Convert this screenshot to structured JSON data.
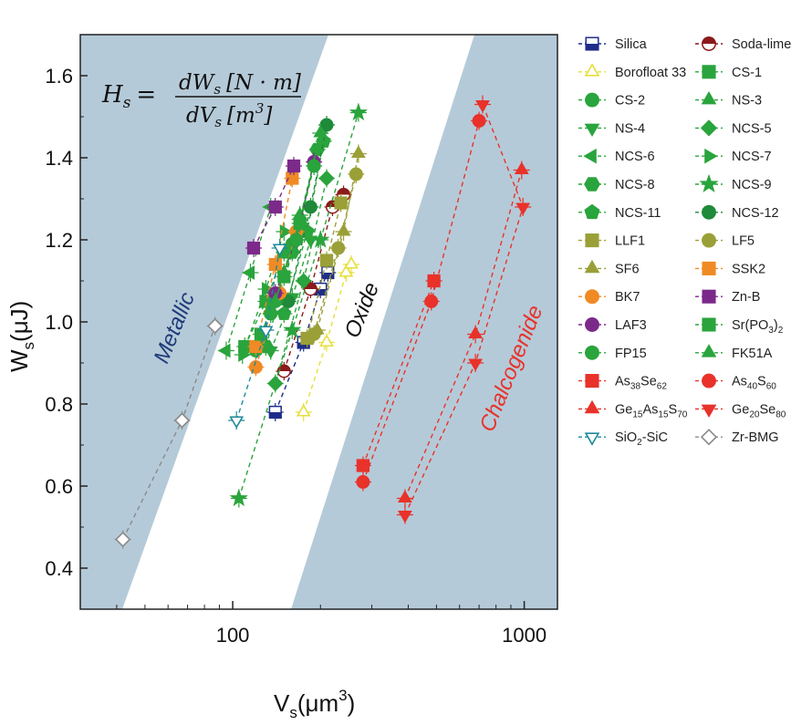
{
  "chart_data": {
    "type": "scatter",
    "xlabel_base": "V",
    "xlabel_sub": "s",
    "xlabel_unit": "(μm",
    "xlabel_sup": "3",
    "xlabel_close": ")",
    "ylabel_base": "W",
    "ylabel_sub": "s",
    "ylabel_unit": "(μJ)",
    "x_scale": "log",
    "xlim": [
      30,
      1300
    ],
    "ylim": [
      0.3,
      1.7
    ],
    "x_ticks": [
      100,
      1000
    ],
    "x_tick_labels": [
      "100",
      "1000"
    ],
    "y_ticks": [
      0.4,
      0.6,
      0.8,
      1.0,
      1.2,
      1.4,
      1.6
    ],
    "y_tick_labels": [
      "0.4",
      "0.6",
      "0.8",
      "1.0",
      "1.2",
      "1.4",
      "1.6"
    ],
    "grid": false,
    "legend_position": "right",
    "formula": {
      "lhs": "H",
      "lhs_sub": "s",
      "eq": "=",
      "numerator": "dW",
      "numerator_sub": "s",
      "numerator_unit": "[N · m]",
      "denominator": "dV",
      "denominator_sub": "s",
      "denominator_unit": "[m",
      "denominator_sup": "3",
      "denominator_close": "]"
    },
    "region_labels": {
      "metallic": "Metallic",
      "oxide": "Oxide",
      "chalcogenide": "Chalcogenide"
    },
    "colors": {
      "background": "#b5cad8",
      "band": "#ffffff",
      "metallic_text": "#1f3a7a",
      "oxide_text": "#111111",
      "chalcogenide_text": "#e8322a"
    },
    "series": [
      {
        "name": "Silica",
        "name_sub": "",
        "marker": "square-half",
        "color": "#1f2d8a",
        "x": [
          140,
          175,
          200,
          212
        ],
        "y": [
          0.78,
          0.95,
          1.08,
          1.12
        ]
      },
      {
        "name": "Soda-lime",
        "name_sub": "",
        "marker": "circle-half",
        "color": "#8b1a1a",
        "x": [
          150,
          185,
          220,
          240
        ],
        "y": [
          0.88,
          1.08,
          1.28,
          1.31
        ]
      },
      {
        "name": "Borofloat 33",
        "name_sub": "",
        "marker": "triangle-open",
        "color": "#e6df3a",
        "x": [
          175,
          210,
          245,
          255
        ],
        "y": [
          0.78,
          0.95,
          1.12,
          1.14
        ]
      },
      {
        "name": "CS-1",
        "name_sub": "",
        "marker": "square",
        "color": "#2aa43c",
        "x": [
          110,
          130,
          150
        ],
        "y": [
          0.94,
          1.05,
          1.17
        ]
      },
      {
        "name": "CS-2",
        "name_sub": "",
        "marker": "circle",
        "color": "#2aa43c",
        "x": [
          120,
          140,
          160
        ],
        "y": [
          0.93,
          1.05,
          1.19
        ]
      },
      {
        "name": "NS-3",
        "name_sub": "",
        "marker": "triangle",
        "color": "#2aa43c",
        "x": [
          125,
          150,
          170
        ],
        "y": [
          0.95,
          1.12,
          1.26
        ]
      },
      {
        "name": "NS-4",
        "name_sub": "",
        "marker": "triangle-down",
        "color": "#2aa43c",
        "x": [
          135,
          160,
          185
        ],
        "y": [
          0.93,
          1.06,
          1.2
        ]
      },
      {
        "name": "NCS-5",
        "name_sub": "",
        "marker": "diamond",
        "color": "#2aa43c",
        "x": [
          140,
          175,
          210
        ],
        "y": [
          0.85,
          1.1,
          1.35
        ]
      },
      {
        "name": "NCS-6",
        "name_sub": "",
        "marker": "triangle-left",
        "color": "#2aa43c",
        "x": [
          95,
          115,
          135
        ],
        "y": [
          0.93,
          1.12,
          1.28
        ]
      },
      {
        "name": "NCS-7",
        "name_sub": "",
        "marker": "triangle-right",
        "color": "#2aa43c",
        "x": [
          108,
          130,
          150
        ],
        "y": [
          0.92,
          1.08,
          1.22
        ]
      },
      {
        "name": "NCS-8",
        "name_sub": "",
        "marker": "hexagon",
        "color": "#2aa43c",
        "x": [
          130,
          160,
          195
        ],
        "y": [
          0.94,
          1.17,
          1.42
        ]
      },
      {
        "name": "NCS-9",
        "name_sub": "",
        "marker": "star",
        "color": "#2aa43c",
        "x": [
          105,
          160,
          200,
          270
        ],
        "y": [
          0.57,
          0.98,
          1.2,
          1.51
        ]
      },
      {
        "name": "NCS-11",
        "name_sub": "",
        "marker": "pentagon",
        "color": "#2aa43c",
        "x": [
          150,
          180,
          205
        ],
        "y": [
          1.02,
          1.22,
          1.44
        ]
      },
      {
        "name": "NCS-12",
        "name_sub": "",
        "marker": "circle",
        "color": "#1f8a3a",
        "x": [
          155,
          185,
          210
        ],
        "y": [
          1.05,
          1.28,
          1.48
        ]
      },
      {
        "name": "LLF1",
        "name_sub": "",
        "marker": "square",
        "color": "#9aa037",
        "x": [
          180,
          210,
          235
        ],
        "y": [
          0.96,
          1.15,
          1.29
        ]
      },
      {
        "name": "LF5",
        "name_sub": "",
        "marker": "circle",
        "color": "#9aa037",
        "x": [
          190,
          230,
          265
        ],
        "y": [
          0.97,
          1.18,
          1.36
        ]
      },
      {
        "name": "SF6",
        "name_sub": "",
        "marker": "triangle",
        "color": "#9aa037",
        "x": [
          195,
          240,
          270
        ],
        "y": [
          0.98,
          1.22,
          1.41
        ]
      },
      {
        "name": "SSK2",
        "name_sub": "",
        "marker": "square",
        "color": "#f08a24",
        "x": [
          120,
          140,
          160
        ],
        "y": [
          0.94,
          1.14,
          1.35
        ]
      },
      {
        "name": "BK7",
        "name_sub": "",
        "marker": "circle",
        "color": "#f08a24",
        "x": [
          120,
          145,
          165
        ],
        "y": [
          0.89,
          1.07,
          1.22
        ]
      },
      {
        "name": "Zn-B",
        "name_sub": "",
        "marker": "square",
        "color": "#7b2a8a",
        "x": [
          118,
          140,
          162
        ],
        "y": [
          1.18,
          1.28,
          1.38
        ]
      },
      {
        "name": "LAF3",
        "name_sub": "",
        "marker": "circle",
        "color": "#7b2a8a",
        "x": [
          140,
          165,
          190
        ],
        "y": [
          1.07,
          1.2,
          1.39
        ]
      },
      {
        "name": "Sr(PO",
        "name_sub": "3",
        "name_close": ")",
        "name_sub2": "2",
        "marker": "square",
        "color": "#2aa43c",
        "x": [
          125,
          150,
          170
        ],
        "y": [
          0.97,
          1.11,
          1.24
        ]
      },
      {
        "name": "FP15",
        "name_sub": "",
        "marker": "circle",
        "color": "#2aa43c",
        "x": [
          135,
          165,
          190
        ],
        "y": [
          1.02,
          1.2,
          1.38
        ]
      },
      {
        "name": "FK51A",
        "name_sub": "",
        "marker": "triangle",
        "color": "#2aa43c",
        "x": [
          140,
          170,
          200
        ],
        "y": [
          1.05,
          1.25,
          1.46
        ]
      },
      {
        "name": "As",
        "name_sub": "38",
        "name_mid": "Se",
        "name_sub2": "62",
        "marker": "square",
        "color": "#e8322a",
        "x": [
          280,
          490
        ],
        "y": [
          0.65,
          1.1
        ]
      },
      {
        "name": "As",
        "name_sub": "40",
        "name_mid": "S",
        "name_sub2": "60",
        "marker": "circle",
        "color": "#e8322a",
        "x": [
          280,
          480,
          700
        ],
        "y": [
          0.61,
          1.05,
          1.49
        ]
      },
      {
        "name": "Ge",
        "name_sub": "15",
        "name_mid": "As",
        "name_sub2": "15",
        "name_mid2": "S",
        "name_sub3": "70",
        "marker": "triangle",
        "color": "#e8322a",
        "x": [
          390,
          680,
          980
        ],
        "y": [
          0.57,
          0.97,
          1.37
        ]
      },
      {
        "name": "Ge",
        "name_sub": "20",
        "name_mid": "Se",
        "name_sub2": "80",
        "marker": "triangle-down",
        "color": "#e8322a",
        "x": [
          390,
          680,
          990,
          720
        ],
        "y": [
          0.53,
          0.9,
          1.28,
          1.53
        ]
      },
      {
        "name": "SiO",
        "name_sub": "2",
        "name_mid": "-SiC",
        "name_sub2": "",
        "marker": "triangle-down-open",
        "color": "#1f8a9a",
        "x": [
          103,
          130,
          145
        ],
        "y": [
          0.76,
          0.98,
          1.18
        ]
      },
      {
        "name": "Zr-BMG",
        "name_sub": "",
        "marker": "diamond-open",
        "color": "#8a8a8a",
        "x": [
          42,
          67,
          87
        ],
        "y": [
          0.47,
          0.76,
          0.99
        ]
      }
    ]
  }
}
